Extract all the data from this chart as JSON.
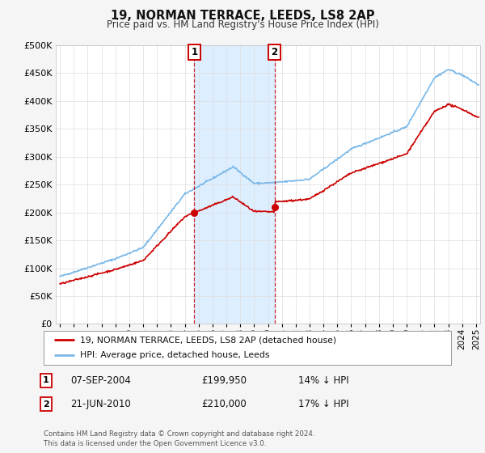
{
  "title": "19, NORMAN TERRACE, LEEDS, LS8 2AP",
  "subtitle": "Price paid vs. HM Land Registry's House Price Index (HPI)",
  "ylim": [
    0,
    500000
  ],
  "yticks": [
    0,
    50000,
    100000,
    150000,
    200000,
    250000,
    300000,
    350000,
    400000,
    450000,
    500000
  ],
  "hpi_color": "#7ab8e8",
  "price_color": "#cc0000",
  "shade_color": "#ddeeff",
  "sale1_date_x": 2004.69,
  "sale1_price": 199950,
  "sale2_date_x": 2010.47,
  "sale2_price": 210000,
  "legend_line1": "19, NORMAN TERRACE, LEEDS, LS8 2AP (detached house)",
  "legend_line2": "HPI: Average price, detached house, Leeds",
  "table_row1": [
    "1",
    "07-SEP-2004",
    "£199,950",
    "14% ↓ HPI"
  ],
  "table_row2": [
    "2",
    "21-JUN-2010",
    "£210,000",
    "17% ↓ HPI"
  ],
  "footer": "Contains HM Land Registry data © Crown copyright and database right 2024.\nThis data is licensed under the Open Government Licence v3.0.",
  "background_color": "#f5f5f5",
  "plot_bg_color": "#ffffff",
  "grid_color": "#dddddd",
  "xlim_left": 1994.7,
  "xlim_right": 2025.3
}
